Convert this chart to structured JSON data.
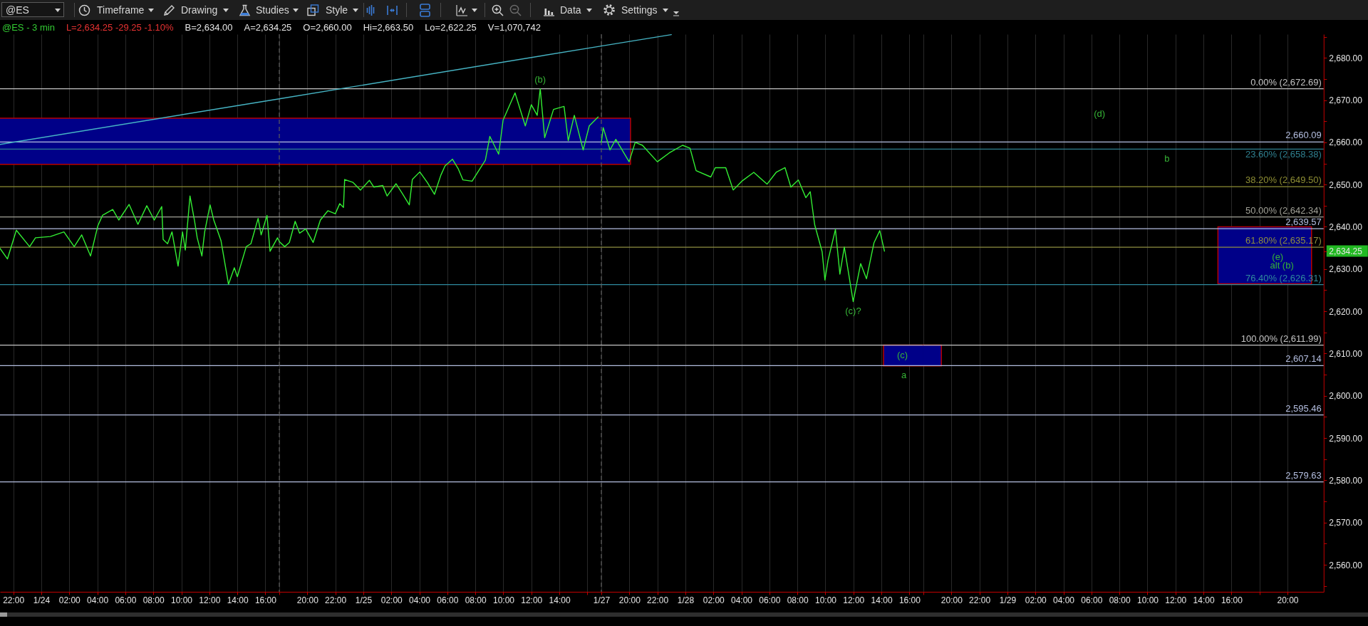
{
  "chart_data": [
    {
      "type": "other",
      "annotations": [
        "@ES",
        "Timeframe",
        "Drawing",
        "Studies",
        "Style",
        "Data",
        "Settings"
      ]
    },
    {
      "type": "line",
      "title": "@ES - 3 min",
      "subtitle": "L=2,634.25 -29.25 -1.10%",
      "tick_labels": "x",
      "grid": "x",
      "xlim": [
        "--01-23T21:03",
        "--01-24T17:00"
      ],
      "ylim": [
        2553.6,
        2685.6
      ],
      "xticks": [
        {
          "value": "--01-23T22:00",
          "label": "22:00"
        },
        {
          "value": "--01-24T00:00",
          "label": "1/24"
        },
        {
          "value": "--01-24T02:00",
          "label": "02:00"
        },
        {
          "value": "--01-24T04:00",
          "label": "04:00"
        },
        {
          "value": "--01-24T06:00",
          "label": "06:00"
        },
        {
          "value": "--01-24T08:00",
          "label": "08:00"
        },
        {
          "value": "--01-24T10:00",
          "label": "10:00"
        },
        {
          "value": "--01-24T12:00",
          "label": "12:00"
        },
        {
          "value": "--01-24T14:00",
          "label": "14:00"
        },
        {
          "value": "--01-24T16:00",
          "label": "16:00"
        }
      ],
      "series": [
        {
          "type": "area",
          "color": "#000088",
          "x": [
            "--01-23T21:03",
            "--01-24T17:00"
          ],
          "lower": [
            2654.8,
            2654.8
          ],
          "upper": [
            2665.7,
            2665.7
          ],
          "values": [
            null,
            null
          ]
        },
        {
          "type": "line",
          "color": "#33ee33",
          "x": [
            "--01-23T21:03",
            "--01-23T21:35",
            "--01-23T22:13",
            "--01-23T23:10",
            "--01-23T23:35",
            "--01-24T00:39",
            "--01-24T01:37",
            "--01-24T02:21",
            "--01-24T02:53",
            "--01-24T03:31",
            "--01-24T04:02",
            "--01-24T04:22",
            "--01-24T05:06",
            "--01-24T05:32",
            "--01-24T06:16",
            "--01-24T06:54",
            "--01-24T07:32",
            "--01-24T08:04",
            "--01-24T08:36",
            "--01-24T08:42",
            "--01-24T09:01",
            "--01-24T09:20",
            "--01-24T09:46",
            "--01-24T10:05",
            "--01-24T10:17",
            "--01-24T10:37",
            "--01-24T10:56",
            "--01-24T11:08",
            "--01-24T11:28",
            "--01-24T11:40",
            "--01-24T12:03",
            "--01-24T12:19",
            "--01-24T12:50",
            "--01-24T13:22",
            "--01-24T13:47",
            "--01-24T14:00",
            "--01-24T14:38",
            "--01-24T14:58",
            "--01-24T15:29",
            "--01-24T15:42",
            "--01-24T16:07",
            "--01-24T16:20",
            "--01-24T16:52",
            "--01-24T17:00"
          ],
          "values": [
            2634.9,
            2632.4,
            2639.2,
            2635.3,
            2637.4,
            2637.7,
            2638.8,
            2635.3,
            2638.1,
            2633.1,
            2640.2,
            2642.7,
            2644.1,
            2641.6,
            2645.3,
            2640.6,
            2645.0,
            2641.6,
            2644.8,
            2637.0,
            2636.0,
            2638.8,
            2630.7,
            2638.8,
            2634.5,
            2647.3,
            2641.6,
            2637.4,
            2633.1,
            2638.8,
            2645.2,
            2641.6,
            2636.7,
            2626.4,
            2630.3,
            2628.2,
            2635.3,
            2636.0,
            2642.0,
            2638.1,
            2642.7,
            2634.2,
            2637.4,
            2636.5
          ]
        },
        {
          "type": "line",
          "color": "#46b4c4",
          "x": [
            "--01-23T21:03",
            "--01-24T17:00"
          ],
          "values": [
            2659.5,
            2670.3
          ]
        }
      ],
      "ref_lines": [
        {
          "axis": "y",
          "value": 2672.69,
          "color": "#c4c4c4"
        },
        {
          "axis": "y",
          "value": 2660.09,
          "color": "#b4bee0"
        },
        {
          "axis": "y",
          "value": 2658.38,
          "color": "#2f8090"
        },
        {
          "axis": "y",
          "value": 2649.5,
          "color": "#8e8e34"
        },
        {
          "axis": "y",
          "value": 2642.34,
          "color": "#a0a096"
        },
        {
          "axis": "y",
          "value": 2639.57,
          "color": "#b4bee0"
        },
        {
          "axis": "y",
          "value": 2635.17,
          "color": "#8e8e40"
        },
        {
          "axis": "y",
          "value": 2626.31,
          "color": "#2f8a9e"
        },
        {
          "axis": "y",
          "value": 2611.99,
          "color": "#c4c4c4"
        },
        {
          "axis": "y",
          "value": 2607.14,
          "color": "#b4bee0"
        },
        {
          "axis": "y",
          "value": 2595.46,
          "color": "#b4bee0"
        },
        {
          "axis": "y",
          "value": 2579.63,
          "color": "#b4bee0"
        }
      ],
      "annotations": [
        "B=2,634.00",
        "A=2,634.25",
        "O=2,660.00",
        "Hi=2,663.50",
        "Lo=2,622.25",
        "V=1,070,742"
      ]
    },
    {
      "type": "line",
      "tick_labels": "x",
      "grid": "x",
      "xlim": [
        "--01-24T18:00",
        "--01-25T17:00"
      ],
      "ylim": [
        2553.6,
        2685.6
      ],
      "xticks": [
        {
          "value": "--01-24T18:00",
          "label": null
        },
        {
          "value": "--01-24T20:00",
          "label": "20:00"
        },
        {
          "value": "--01-24T22:00",
          "label": "22:00"
        },
        {
          "value": "--01-25T00:00",
          "label": "1/25"
        },
        {
          "value": "--01-25T02:00",
          "label": "02:00"
        },
        {
          "value": "--01-25T04:00",
          "label": "04:00"
        },
        {
          "value": "--01-25T06:00",
          "label": "06:00"
        },
        {
          "value": "--01-25T08:00",
          "label": "08:00"
        },
        {
          "value": "--01-25T10:00",
          "label": "10:00"
        },
        {
          "value": "--01-25T12:00",
          "label": "12:00"
        },
        {
          "value": "--01-25T14:00",
          "label": "14:00"
        },
        {
          "value": "--01-25T16:00",
          "label": null
        }
      ],
      "series": [
        {
          "type": "area",
          "color": "#000088",
          "x": [
            "--01-24T18:00",
            "--01-25T17:00"
          ],
          "lower": [
            2654.8,
            2654.8
          ],
          "upper": [
            2665.7,
            2665.7
          ],
          "values": [
            null,
            null
          ]
        },
        {
          "type": "line",
          "color": "#33ee33",
          "x": [
            "--01-24T18:00",
            "--01-24T18:23",
            "--01-24T18:43",
            "--01-24T19:08",
            "--01-24T19:27",
            "--01-24T19:53",
            "--01-24T20:25",
            "--01-24T20:56",
            "--01-24T21:28",
            "--01-24T22:00",
            "--01-24T22:19",
            "--01-24T22:35",
            "--01-24T22:40",
            "--01-24T23:16",
            "--01-24T23:48",
            "--01-25T00:26",
            "--01-25T00:45",
            "--01-25T01:23",
            "--01-25T01:42",
            "--01-25T02:20",
            "--01-25T02:46",
            "--01-25T03:17",
            "--01-25T03:30",
            "--01-25T04:02",
            "--01-25T04:34",
            "--01-25T05:05",
            "--01-25T05:32",
            "--01-25T05:50",
            "--01-25T06:22",
            "--01-25T06:47",
            "--01-25T07:07",
            "--01-25T07:46",
            "--01-25T08:43",
            "--01-25T09:02",
            "--01-25T09:40",
            "--01-25T09:59",
            "--01-25T10:50",
            "--01-25T11:34",
            "--01-25T12:00",
            "--01-25T12:25",
            "--01-25T12:38",
            "--01-25T12:57",
            "--01-25T13:35",
            "--01-25T14:20",
            "--01-25T14:38",
            "--01-25T15:04",
            "--01-25T15:42",
            "--01-25T16:08",
            "--01-25T16:46"
          ],
          "values": [
            2636.5,
            2635.3,
            2636.3,
            2641.3,
            2638.5,
            2639.5,
            2636.3,
            2641.6,
            2643.8,
            2643.1,
            2645.5,
            2644.6,
            2651.2,
            2650.5,
            2648.7,
            2651.0,
            2649.4,
            2649.8,
            2647.3,
            2650.2,
            2648.0,
            2645.2,
            2651.2,
            2653.0,
            2650.5,
            2647.7,
            2652.2,
            2654.4,
            2656.0,
            2653.7,
            2651.1,
            2650.8,
            2655.8,
            2661.4,
            2657.2,
            2665.3,
            2671.7,
            2663.9,
            2668.9,
            2666.4,
            2672.7,
            2661.1,
            2667.8,
            2668.5,
            2660.4,
            2666.4,
            2658.2,
            2663.9,
            2666.0
          ]
        },
        {
          "type": "line",
          "color": "#46b4c4",
          "x": [
            "--01-24T18:00",
            "--01-25T17:00"
          ],
          "values": [
            2670.3,
            2682.8
          ]
        }
      ],
      "ref_lines": [
        {
          "axis": "y",
          "value": 2672.69,
          "color": "#c4c4c4"
        },
        {
          "axis": "y",
          "value": 2660.09,
          "color": "#b4bee0"
        },
        {
          "axis": "y",
          "value": 2658.38,
          "color": "#2f8090"
        },
        {
          "axis": "y",
          "value": 2649.5,
          "color": "#8e8e34"
        },
        {
          "axis": "y",
          "value": 2642.34,
          "color": "#a0a096"
        },
        {
          "axis": "y",
          "value": 2639.57,
          "color": "#b4bee0"
        },
        {
          "axis": "y",
          "value": 2635.17,
          "color": "#8e8e40"
        },
        {
          "axis": "y",
          "value": 2626.31,
          "color": "#2f8a9e"
        },
        {
          "axis": "y",
          "value": 2611.99,
          "color": "#c4c4c4"
        },
        {
          "axis": "y",
          "value": 2607.14,
          "color": "#b4bee0"
        },
        {
          "axis": "y",
          "value": 2595.46,
          "color": "#b4bee0"
        },
        {
          "axis": "y",
          "value": 2579.63,
          "color": "#b4bee0"
        },
        {
          "axis": "x",
          "value": "--01-24T18:00",
          "color": "#5c5c5c",
          "line_style": "dashed"
        }
      ],
      "annotations": [
        {
          "text": "(b)",
          "x": "--01-25T12:38",
          "y": 2672.7
        }
      ]
    },
    {
      "type": "line",
      "tick_labels": "x",
      "grid": "x",
      "xlim": [
        "--01-27T18:00",
        "--01-28T17:00"
      ],
      "ylim": [
        2553.6,
        2685.6
      ],
      "xticks": [
        {
          "value": "--01-27T18:00",
          "label": "1/27"
        },
        {
          "value": "--01-27T20:00",
          "label": "20:00"
        },
        {
          "value": "--01-27T22:00",
          "label": "22:00"
        },
        {
          "value": "--01-28T00:00",
          "label": "1/28"
        },
        {
          "value": "--01-28T02:00",
          "label": "02:00"
        },
        {
          "value": "--01-28T04:00",
          "label": "04:00"
        },
        {
          "value": "--01-28T06:00",
          "label": "06:00"
        },
        {
          "value": "--01-28T08:00",
          "label": "08:00"
        },
        {
          "value": "--01-28T10:00",
          "label": "10:00"
        },
        {
          "value": "--01-28T12:00",
          "label": "12:00"
        },
        {
          "value": "--01-28T14:00",
          "label": "14:00"
        },
        {
          "value": "--01-28T16:00",
          "label": "16:00"
        }
      ],
      "series": [
        {
          "type": "area",
          "color": "#000088",
          "x": [
            "--01-27T18:00",
            "--01-27T20:05"
          ],
          "lower": [
            2654.8,
            2654.8
          ],
          "upper": [
            2665.7,
            2665.7
          ],
          "values": [
            null,
            null
          ]
        },
        {
          "type": "area",
          "color": "#000088",
          "x": [
            "--01-28T14:09",
            "--01-28T17:00"
          ],
          "lower": [
            2607.1,
            2607.1
          ],
          "upper": [
            2612.0,
            2612.0
          ],
          "values": [
            null,
            null
          ]
        },
        {
          "type": "line",
          "color": "#33ee33",
          "x": [
            "--01-27T18:00",
            "--01-27T18:08",
            "--01-27T18:37",
            "--01-27T19:02",
            "--01-27T19:59",
            "--01-27T20:25",
            "--01-27T20:56",
            "--01-27T22:00",
            "--01-27T22:51",
            "--01-27T23:48",
            "--01-28T00:20",
            "--01-28T00:46",
            "--01-28T01:49",
            "--01-28T02:08",
            "--01-28T02:53",
            "--01-28T03:25",
            "--01-28T04:02",
            "--01-28T04:53",
            "--01-28T05:50",
            "--01-28T06:29",
            "--01-28T07:07",
            "--01-28T07:32",
            "--01-28T08:04",
            "--01-28T08:36",
            "--01-28T08:55",
            "--01-28T09:14",
            "--01-28T09:46",
            "--01-28T09:58",
            "--01-28T10:11",
            "--01-28T10:43",
            "--01-28T11:02",
            "--01-28T11:21",
            "--01-28T11:59",
            "--01-28T12:31",
            "--01-28T12:56",
            "--01-28T13:28",
            "--01-28T13:53",
            "--01-28T14:13"
          ],
          "values": [
            2660.0,
            2663.5,
            2658.2,
            2660.7,
            2655.4,
            2660.0,
            2659.3,
            2655.4,
            2657.5,
            2659.3,
            2658.6,
            2653.3,
            2651.8,
            2654.0,
            2654.0,
            2648.7,
            2650.8,
            2652.9,
            2650.1,
            2652.9,
            2654.0,
            2649.4,
            2651.1,
            2646.9,
            2648.3,
            2640.5,
            2634.1,
            2627.4,
            2632.0,
            2639.4,
            2628.8,
            2635.2,
            2622.3,
            2631.3,
            2627.7,
            2636.2,
            2639.1,
            2634.25
          ]
        },
        {
          "type": "line",
          "color": "#46b4c4",
          "x": [
            "--01-27T18:00",
            "--01-27T23:00"
          ],
          "values": [
            2682.8,
            2685.5
          ]
        }
      ],
      "ref_lines": [
        {
          "axis": "y",
          "value": 2672.69,
          "color": "#c4c4c4"
        },
        {
          "axis": "y",
          "value": 2660.09,
          "color": "#b4bee0"
        },
        {
          "axis": "y",
          "value": 2658.38,
          "color": "#2f8090"
        },
        {
          "axis": "y",
          "value": 2649.5,
          "color": "#8e8e34"
        },
        {
          "axis": "y",
          "value": 2642.34,
          "color": "#a0a096"
        },
        {
          "axis": "y",
          "value": 2639.57,
          "color": "#b4bee0"
        },
        {
          "axis": "y",
          "value": 2635.17,
          "color": "#8e8e40"
        },
        {
          "axis": "y",
          "value": 2626.31,
          "color": "#2f8a9e"
        },
        {
          "axis": "y",
          "value": 2611.99,
          "color": "#c4c4c4"
        },
        {
          "axis": "y",
          "value": 2607.14,
          "color": "#b4bee0"
        },
        {
          "axis": "y",
          "value": 2595.46,
          "color": "#b4bee0"
        },
        {
          "axis": "y",
          "value": 2579.63,
          "color": "#b4bee0"
        },
        {
          "axis": "x",
          "value": "--01-27T18:00",
          "color": "#5c5c5c",
          "line_style": "dashed"
        }
      ],
      "annotations": [
        {
          "text": "(c)?",
          "x": "--01-28T11:59",
          "y": 2622.3
        },
        {
          "text": "(c)",
          "x": "--01-28T15:30",
          "y": 2607.1
        },
        {
          "text": "a",
          "x": "--01-28T15:36",
          "y": 2607.14
        }
      ]
    },
    {
      "type": "line",
      "grid": "x",
      "xlim": [
        "--01-28T18:00",
        "--01-29T22:35"
      ],
      "ylim": [
        2553.6,
        2685.6
      ],
      "xticks": [
        {
          "value": "--01-28T18:00",
          "label": null
        },
        {
          "value": "--01-28T20:00",
          "label": "20:00"
        },
        {
          "value": "--01-28T22:00",
          "label": "22:00"
        },
        {
          "value": "--01-29T00:00",
          "label": "1/29"
        },
        {
          "value": "--01-29T02:00",
          "label": "02:00"
        },
        {
          "value": "--01-29T04:00",
          "label": "04:00"
        },
        {
          "value": "--01-29T06:00",
          "label": "06:00"
        },
        {
          "value": "--01-29T08:00",
          "label": "08:00"
        },
        {
          "value": "--01-29T10:00",
          "label": "10:00"
        },
        {
          "value": "--01-29T12:00",
          "label": "12:00"
        },
        {
          "value": "--01-29T14:00",
          "label": "14:00"
        },
        {
          "value": "--01-29T16:00",
          "label": "16:00"
        },
        {
          "value": "--01-29T18:00",
          "label": null
        },
        {
          "value": "--01-29T20:00",
          "label": "20:00"
        }
      ],
      "yticks": [
        {
          "value": 2555,
          "label": null
        },
        {
          "value": 2560,
          "label": "2,560.00"
        },
        {
          "value": 2565,
          "label": null
        },
        {
          "value": 2570,
          "label": "2,570.00"
        },
        {
          "value": 2575,
          "label": null
        },
        {
          "value": 2580,
          "label": "2,580.00"
        },
        {
          "value": 2585,
          "label": null
        },
        {
          "value": 2590,
          "label": "2,590.00"
        },
        {
          "value": 2595,
          "label": null
        },
        {
          "value": 2600,
          "label": "2,600.00"
        },
        {
          "value": 2605,
          "label": null
        },
        {
          "value": 2610,
          "label": "2,610.00"
        },
        {
          "value": 2615,
          "label": null
        },
        {
          "value": 2620,
          "label": "2,620.00"
        },
        {
          "value": 2625,
          "label": null
        },
        {
          "value": 2630,
          "label": "2,630.00"
        },
        {
          "value": 2634.25,
          "label": "2,634.25"
        },
        {
          "value": 2640,
          "label": "2,640.00"
        },
        {
          "value": 2645,
          "label": null
        },
        {
          "value": 2650,
          "label": "2,650.00"
        },
        {
          "value": 2655,
          "label": null
        },
        {
          "value": 2660,
          "label": "2,660.00"
        },
        {
          "value": 2665,
          "label": null
        },
        {
          "value": 2670,
          "label": "2,670.00"
        },
        {
          "value": 2675,
          "label": null
        },
        {
          "value": 2680,
          "label": "2,680.00"
        },
        {
          "value": 2685,
          "label": null
        }
      ],
      "series": [
        {
          "type": "area",
          "color": "#000088",
          "x": [
            "--01-28T18:00",
            "--01-28T19:17"
          ],
          "lower": [
            2607.1,
            2607.1
          ],
          "upper": [
            2612.0,
            2612.0
          ],
          "values": [
            null,
            null
          ]
        },
        {
          "type": "area",
          "color": "#000088",
          "x": [
            "--01-29T15:02",
            "--01-29T21:43"
          ],
          "lower": [
            2626.5,
            2626.5
          ],
          "upper": [
            2640.0,
            2640.0
          ],
          "values": [
            null,
            null
          ]
        }
      ],
      "ref_lines": [
        {
          "axis": "y",
          "value": 2672.69,
          "label": "0.00% (2,672.69)",
          "color": "#c4c4c4"
        },
        {
          "axis": "y",
          "value": 2660.09,
          "label": "2,660.09",
          "color": "#b4bee0"
        },
        {
          "axis": "y",
          "value": 2658.38,
          "label": "23.60% (2,658.38)",
          "color": "#2f8090"
        },
        {
          "axis": "y",
          "value": 2649.5,
          "label": "38.20% (2,649.50)",
          "color": "#8e8e34"
        },
        {
          "axis": "y",
          "value": 2642.34,
          "label": "50.00% (2,642.34)",
          "color": "#a0a096"
        },
        {
          "axis": "y",
          "value": 2639.57,
          "label": "2,639.57",
          "color": "#b4bee0"
        },
        {
          "axis": "y",
          "value": 2635.17,
          "label": "61.80% (2,635.17)",
          "color": "#8e8e40"
        },
        {
          "axis": "y",
          "value": 2626.31,
          "label": "76.40% (2,626.31)",
          "color": "#2f8a9e"
        },
        {
          "axis": "y",
          "value": 2611.99,
          "label": "100.00% (2,611.99)",
          "color": "#c4c4c4"
        },
        {
          "axis": "y",
          "value": 2607.14,
          "label": "2,607.14",
          "color": "#b4bee0"
        },
        {
          "axis": "y",
          "value": 2595.46,
          "label": "2,595.46",
          "color": "#b4bee0"
        },
        {
          "axis": "y",
          "value": 2579.63,
          "label": "2,579.63",
          "color": "#b4bee0"
        }
      ],
      "annotations": [
        "(d)",
        {
          "text": "b",
          "x": "--01-29T11:24",
          "y": 2658.38
        },
        {
          "text": "(e)",
          "x": "--01-29T19:18",
          "y": 2635.17
        },
        {
          "text": "alt (b)",
          "x": "--01-29T19:36",
          "y": 2626.5
        }
      ]
    }
  ]
}
